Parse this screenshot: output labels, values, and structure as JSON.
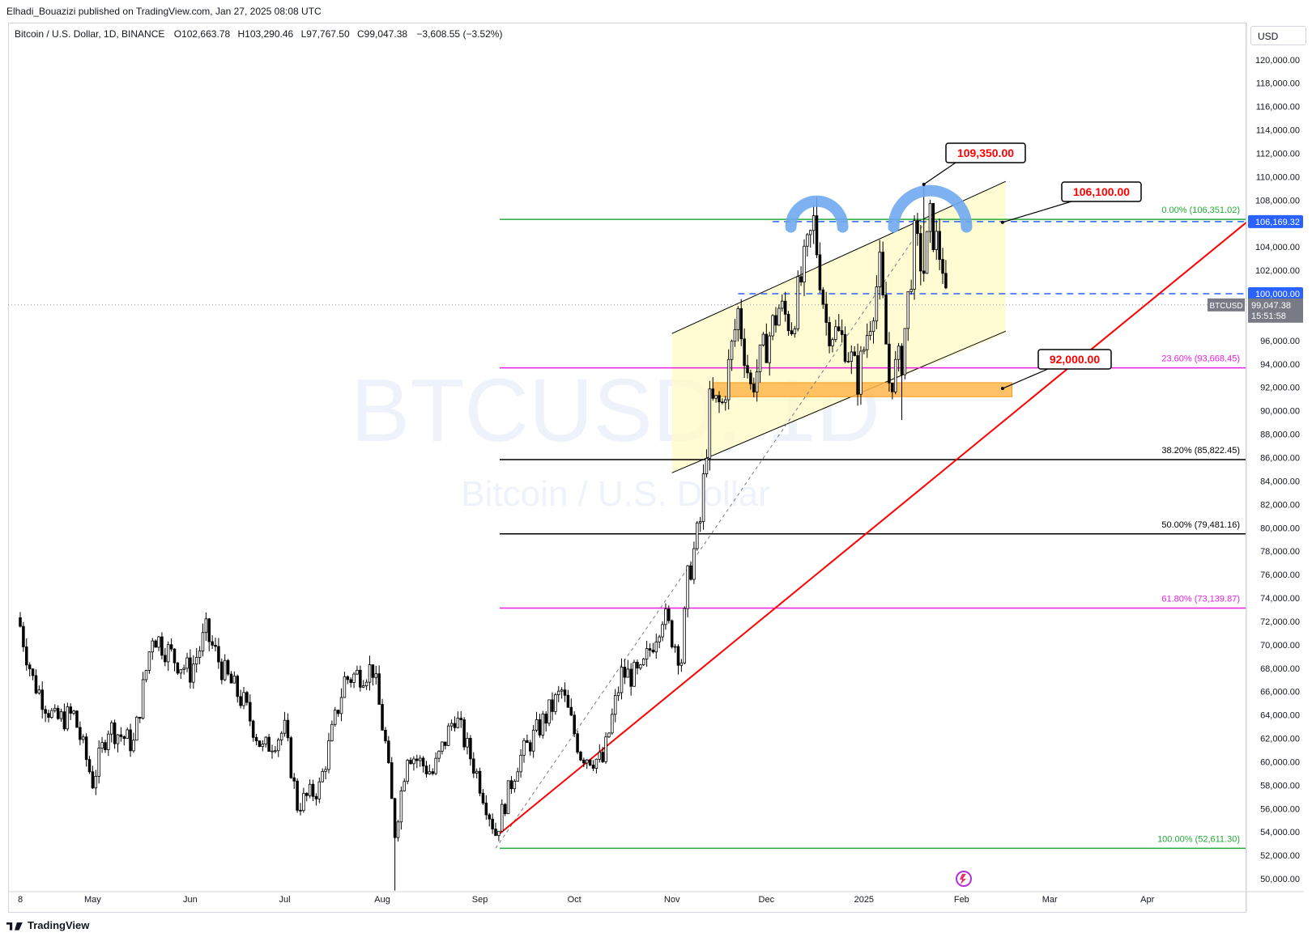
{
  "header": {
    "publisher": "Elhadi_Bouazizi published on TradingView.com, Jan 27, 2025 08:08 UTC"
  },
  "legend": {
    "symbol": "Bitcoin / U.S. Dollar, 1D, BINANCE",
    "open_label": "O",
    "open": "102,663.78",
    "high_label": "H",
    "high": "103,290.46",
    "low_label": "L",
    "low": "97,767.50",
    "close_label": "C",
    "close": "99,047.38",
    "change": "−3,608.55 (−3.52%)"
  },
  "currency": "USD",
  "watermark": {
    "ticker": "BTCUSD, 1D",
    "name": "Bitcoin / U.S. Dollar"
  },
  "footer": {
    "brand": "TradingView"
  },
  "colors": {
    "up": "#ffffff",
    "down": "#000000",
    "outline": "#000000",
    "fib_green": "#22ab38",
    "fib_magenta": "#e91ee0",
    "fib_black": "#000000",
    "trendline": "#ff0000",
    "dashed_blue": "#2962ff",
    "channel_fill": "#fff9c4",
    "support_zone": "#ffb74d",
    "arc": "#6fa8f0",
    "callout_text": "#ff0000"
  },
  "chart_data": {
    "type": "candlestick",
    "title": "Bitcoin / U.S. Dollar, 1D, BINANCE",
    "x_axis_labels": [
      "8",
      "May",
      "Jun",
      "Jul",
      "Aug",
      "Sep",
      "Oct",
      "Nov",
      "Dec",
      "2025",
      "Feb",
      "Mar",
      "Apr"
    ],
    "x_axis_dates": [
      "2024-04-08",
      "2024-05-01",
      "2024-06-01",
      "2024-07-01",
      "2024-08-01",
      "2024-09-01",
      "2024-10-01",
      "2024-11-01",
      "2024-12-01",
      "2025-01-01",
      "2025-02-01",
      "2025-03-01",
      "2025-04-01"
    ],
    "x_range": [
      "2024-04-08",
      "2025-04-25"
    ],
    "y_range": [
      48900,
      121300
    ],
    "y_ticks": [
      "120,000.00",
      "118,000.00",
      "116,000.00",
      "114,000.00",
      "112,000.00",
      "110,000.00",
      "108,000.00",
      "106,000.00",
      "104,000.00",
      "102,000.00",
      "100,000.00",
      "98,000.00",
      "96,000.00",
      "94,000.00",
      "92,000.00",
      "90,000.00",
      "88,000.00",
      "86,000.00",
      "84,000.00",
      "82,000.00",
      "80,000.00",
      "78,000.00",
      "76,000.00",
      "74,000.00",
      "72,000.00",
      "70,000.00",
      "68,000.00",
      "66,000.00",
      "64,000.00",
      "62,000.00",
      "60,000.00",
      "58,000.00",
      "56,000.00",
      "54,000.00",
      "52,000.00",
      "50,000.00"
    ],
    "y_tick_values": [
      120000,
      118000,
      116000,
      114000,
      112000,
      110000,
      108000,
      106000,
      104000,
      102000,
      100000,
      98000,
      96000,
      94000,
      92000,
      90000,
      88000,
      86000,
      84000,
      82000,
      80000,
      78000,
      76000,
      74000,
      72000,
      70000,
      68000,
      66000,
      64000,
      62000,
      60000,
      58000,
      56000,
      54000,
      52000,
      50000
    ],
    "close_path": [
      [
        "2024-04-08",
        71600
      ],
      [
        "2024-04-12",
        67000
      ],
      [
        "2024-04-19",
        63500
      ],
      [
        "2024-04-25",
        64000
      ],
      [
        "2024-05-01",
        58300
      ],
      [
        "2024-05-06",
        63000
      ],
      [
        "2024-05-14",
        61500
      ],
      [
        "2024-05-20",
        71000
      ],
      [
        "2024-05-27",
        68800
      ],
      [
        "2024-06-01",
        67700
      ],
      [
        "2024-06-06",
        71000
      ],
      [
        "2024-06-12",
        67500
      ],
      [
        "2024-06-18",
        65000
      ],
      [
        "2024-06-24",
        61000
      ],
      [
        "2024-07-01",
        62700
      ],
      [
        "2024-07-05",
        56300
      ],
      [
        "2024-07-12",
        57800
      ],
      [
        "2024-07-20",
        67000
      ],
      [
        "2024-07-29",
        68000
      ],
      [
        "2024-08-02",
        61500
      ],
      [
        "2024-08-05",
        54000
      ],
      [
        "2024-08-09",
        60900
      ],
      [
        "2024-08-17",
        59000
      ],
      [
        "2024-08-24",
        64000
      ],
      [
        "2024-08-31",
        59000
      ],
      [
        "2024-09-06",
        53900
      ],
      [
        "2024-09-13",
        60000
      ],
      [
        "2024-09-20",
        63000
      ],
      [
        "2024-09-27",
        66000
      ],
      [
        "2024-10-03",
        60700
      ],
      [
        "2024-10-10",
        60000
      ],
      [
        "2024-10-16",
        67500
      ],
      [
        "2024-10-22",
        67300
      ],
      [
        "2024-10-29",
        72700
      ],
      [
        "2024-11-04",
        68800
      ],
      [
        "2024-11-06",
        75500
      ],
      [
        "2024-11-10",
        80500
      ],
      [
        "2024-11-13",
        90500
      ],
      [
        "2024-11-17",
        90500
      ],
      [
        "2024-11-22",
        98500
      ],
      [
        "2024-11-26",
        91900
      ],
      [
        "2024-12-05",
        98800
      ],
      [
        "2024-12-09",
        97400
      ],
      [
        "2024-12-16",
        106000
      ],
      [
        "2024-12-20",
        97500
      ],
      [
        "2024-12-26",
        95800
      ],
      [
        "2024-12-30",
        92700
      ],
      [
        "2025-01-06",
        102000
      ],
      [
        "2025-01-09",
        92500
      ],
      [
        "2025-01-13",
        94500
      ],
      [
        "2025-01-17",
        104500
      ],
      [
        "2025-01-20",
        102000
      ],
      [
        "2025-01-22",
        106100
      ],
      [
        "2025-01-26",
        102600
      ],
      [
        "2025-01-27",
        99047
      ]
    ],
    "swing_extremes": [
      {
        "date": "2024-08-05",
        "low": 49000
      },
      {
        "date": "2024-12-17",
        "high": 108300
      },
      {
        "date": "2025-01-20",
        "high": 109350
      },
      {
        "date": "2025-01-13",
        "low": 89200
      }
    ],
    "fibonacci": [
      {
        "label": "0.00% (106,351.02)",
        "value": 106351.02,
        "color": "#22ab38"
      },
      {
        "label": "23.60% (93,668.45)",
        "value": 93668.45,
        "color": "#e91ee0"
      },
      {
        "label": "38.20% (85,822.45)",
        "value": 85822.45,
        "color": "#000000"
      },
      {
        "label": "50.00% (79,481.16)",
        "value": 79481.16,
        "color": "#000000"
      },
      {
        "label": "61.80% (73,139.87)",
        "value": 73139.87,
        "color": "#e91ee0"
      },
      {
        "label": "100.00% (52,611.30)",
        "value": 52611.3,
        "color": "#22ab38"
      }
    ],
    "callouts": [
      "109,350.00",
      "106,100.00",
      "92,000.00"
    ],
    "price_tags": {
      "resistance": "106,169.32",
      "round": "100,000.00",
      "symbol": "BTCUSD",
      "last": "99,047.38",
      "countdown": "15:51:58"
    }
  }
}
